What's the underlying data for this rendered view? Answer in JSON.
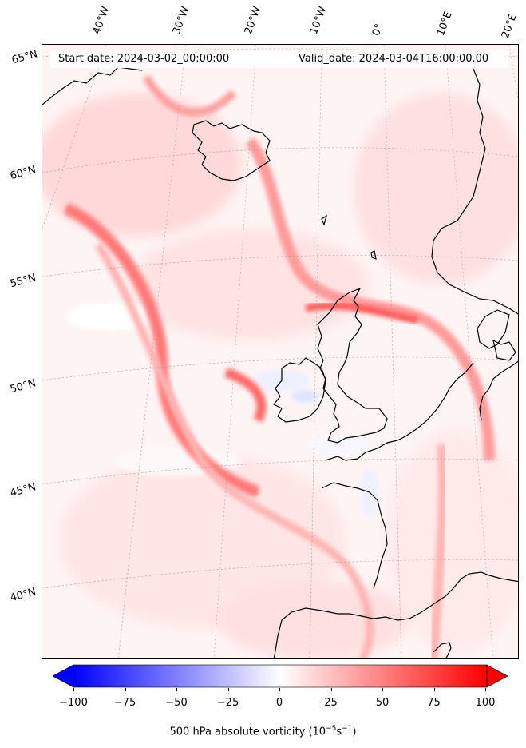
{
  "header": {
    "start_date": "Start date: 2024-03-02_00:00:00",
    "valid_date": "Valid_date: 2024-03-04T16:00:00.00"
  },
  "map": {
    "longitude_labels": [
      "40°W",
      "30°W",
      "20°W",
      "10°W",
      "0°",
      "10°E",
      "20°E"
    ],
    "latitude_labels": [
      "65°N",
      "60°N",
      "55°N",
      "50°N",
      "45°N",
      "40°N"
    ],
    "regions_shown": [
      "Iceland",
      "Ireland",
      "Great Britain",
      "France",
      "Iberia",
      "Scandinavia"
    ],
    "field": "absolute vorticity, 500 hPa"
  },
  "colorbar": {
    "min": -100,
    "max": 100,
    "ticks": [
      "−100",
      "−75",
      "−50",
      "−25",
      "0",
      "25",
      "50",
      "75",
      "100"
    ],
    "tick_values": [
      -100,
      -75,
      -50,
      -25,
      0,
      25,
      50,
      75,
      100
    ],
    "colors": {
      "negative": "#0000ff",
      "zero": "#ffffff",
      "positive": "#ff0000"
    },
    "extend": "both",
    "label_main": "500 hPa absolute vorticity (10",
    "label_exp1": "−5",
    "label_mid": "s",
    "label_exp2": "−1",
    "label_end": ")"
  }
}
